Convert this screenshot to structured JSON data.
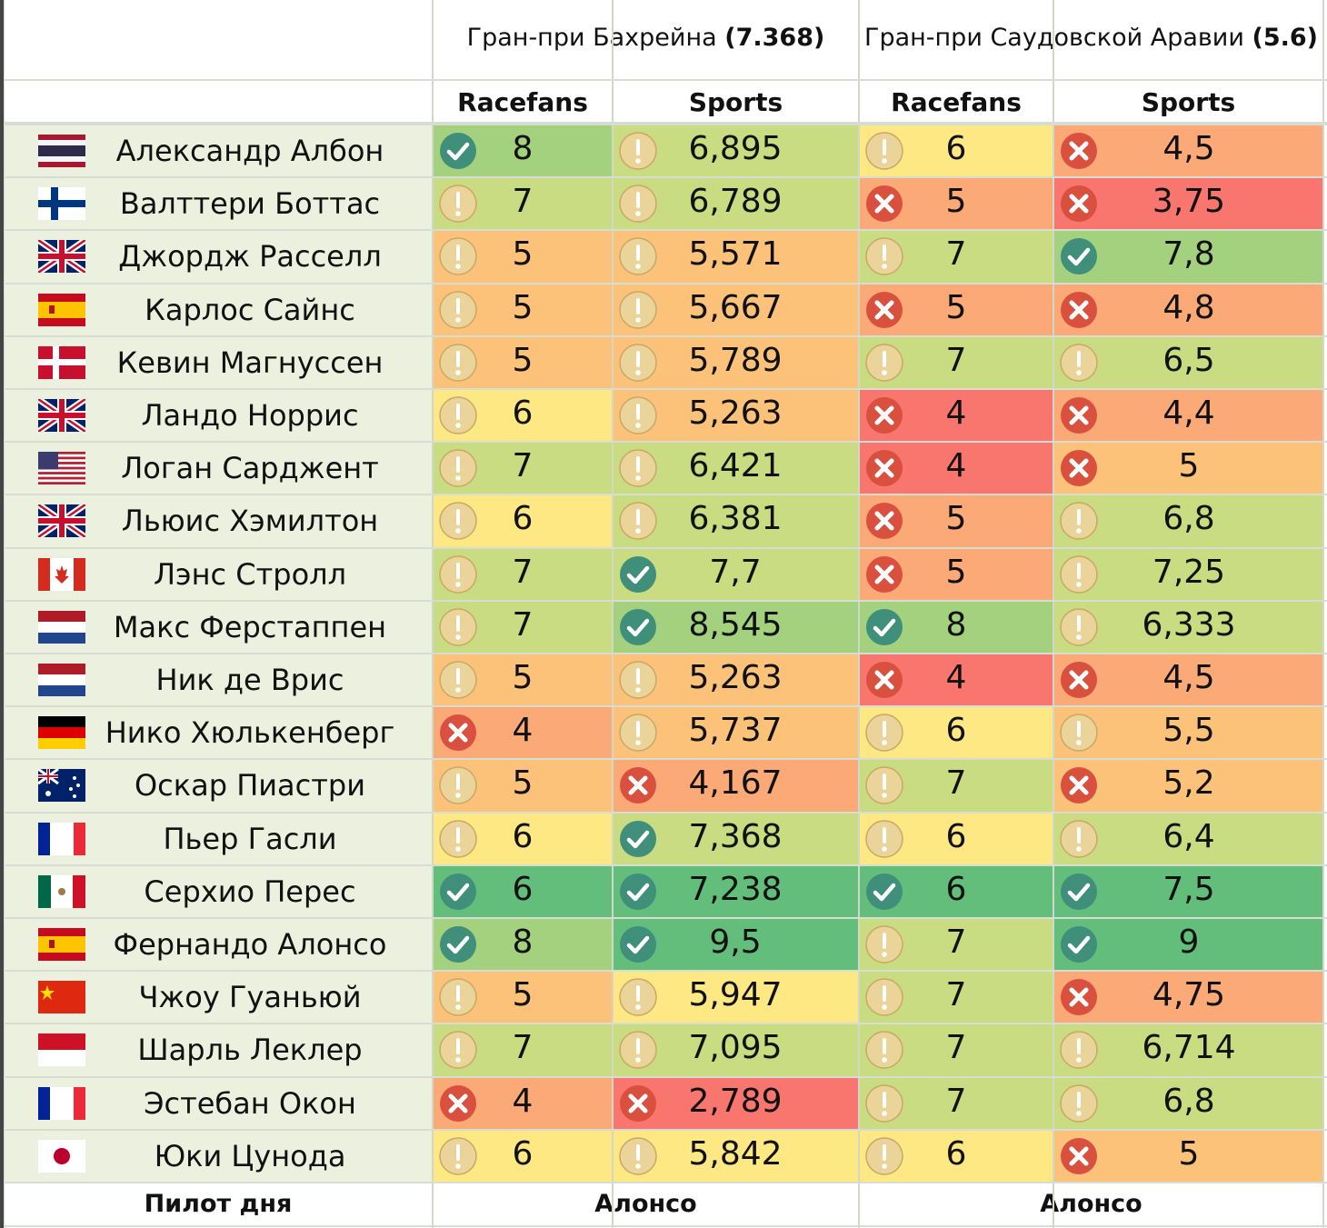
{
  "races": [
    {
      "name": "Гран-при Бахрейна",
      "score": "(7.368)"
    },
    {
      "name": "Гран-при Саудовской Аравии",
      "score": "(5.6)"
    }
  ],
  "columns": [
    "Racefans",
    "Sports",
    "Racefans",
    "Sports"
  ],
  "colors": {
    "deep_green": "#63be7b",
    "green": "#a4d17e",
    "light_green": "#c9dc81",
    "yellow": "#fde884",
    "orange": "#fcc27a",
    "light_red": "#fba977",
    "red": "#f8766d",
    "name_bg": "#ebf1de",
    "check_icon": "#3f8f7a",
    "warn_icon": "#ead49a",
    "cross_icon": "#d9503f"
  },
  "rows": [
    {
      "name": "Александр Албон",
      "flag": "thailand-flag",
      "cells": [
        {
          "v": "8",
          "icon": "check-icon",
          "c": "green"
        },
        {
          "v": "6,895",
          "icon": "warn-icon",
          "c": "light_green"
        },
        {
          "v": "6",
          "icon": "warn-icon",
          "c": "yellow"
        },
        {
          "v": "4,5",
          "icon": "cross-icon",
          "c": "light_red"
        }
      ]
    },
    {
      "name": "Валттери Боттас",
      "flag": "finland-flag",
      "cells": [
        {
          "v": "7",
          "icon": "warn-icon",
          "c": "light_green"
        },
        {
          "v": "6,789",
          "icon": "warn-icon",
          "c": "light_green"
        },
        {
          "v": "5",
          "icon": "cross-icon",
          "c": "light_red"
        },
        {
          "v": "3,75",
          "icon": "cross-icon",
          "c": "red"
        }
      ]
    },
    {
      "name": "Джордж Расселл",
      "flag": "uk-flag",
      "cells": [
        {
          "v": "5",
          "icon": "warn-icon",
          "c": "orange"
        },
        {
          "v": "5,571",
          "icon": "warn-icon",
          "c": "orange"
        },
        {
          "v": "7",
          "icon": "warn-icon",
          "c": "light_green"
        },
        {
          "v": "7,8",
          "icon": "check-icon",
          "c": "green"
        }
      ]
    },
    {
      "name": "Карлос Сайнс",
      "flag": "spain-flag",
      "cells": [
        {
          "v": "5",
          "icon": "warn-icon",
          "c": "orange"
        },
        {
          "v": "5,667",
          "icon": "warn-icon",
          "c": "orange"
        },
        {
          "v": "5",
          "icon": "cross-icon",
          "c": "light_red"
        },
        {
          "v": "4,8",
          "icon": "cross-icon",
          "c": "light_red"
        }
      ]
    },
    {
      "name": "Кевин Магнуссен",
      "flag": "denmark-flag",
      "cells": [
        {
          "v": "5",
          "icon": "warn-icon",
          "c": "orange"
        },
        {
          "v": "5,789",
          "icon": "warn-icon",
          "c": "orange"
        },
        {
          "v": "7",
          "icon": "warn-icon",
          "c": "light_green"
        },
        {
          "v": "6,5",
          "icon": "warn-icon",
          "c": "light_green"
        }
      ]
    },
    {
      "name": "Ландо Норрис",
      "flag": "uk-flag",
      "cells": [
        {
          "v": "6",
          "icon": "warn-icon",
          "c": "yellow"
        },
        {
          "v": "5,263",
          "icon": "warn-icon",
          "c": "orange"
        },
        {
          "v": "4",
          "icon": "cross-icon",
          "c": "red"
        },
        {
          "v": "4,4",
          "icon": "cross-icon",
          "c": "light_red"
        }
      ]
    },
    {
      "name": "Логан Сарджент",
      "flag": "usa-flag",
      "cells": [
        {
          "v": "7",
          "icon": "warn-icon",
          "c": "light_green"
        },
        {
          "v": "6,421",
          "icon": "warn-icon",
          "c": "light_green"
        },
        {
          "v": "4",
          "icon": "cross-icon",
          "c": "red"
        },
        {
          "v": "5",
          "icon": "cross-icon",
          "c": "orange"
        }
      ]
    },
    {
      "name": "Льюис Хэмилтон",
      "flag": "uk-flag",
      "cells": [
        {
          "v": "6",
          "icon": "warn-icon",
          "c": "yellow"
        },
        {
          "v": "6,381",
          "icon": "warn-icon",
          "c": "light_green"
        },
        {
          "v": "5",
          "icon": "cross-icon",
          "c": "light_red"
        },
        {
          "v": "6,8",
          "icon": "warn-icon",
          "c": "light_green"
        }
      ]
    },
    {
      "name": "Лэнс Стролл",
      "flag": "canada-flag",
      "cells": [
        {
          "v": "7",
          "icon": "warn-icon",
          "c": "light_green"
        },
        {
          "v": "7,7",
          "icon": "check-icon",
          "c": "light_green"
        },
        {
          "v": "5",
          "icon": "cross-icon",
          "c": "light_red"
        },
        {
          "v": "7,25",
          "icon": "warn-icon",
          "c": "light_green"
        }
      ]
    },
    {
      "name": "Макс Ферстаппен",
      "flag": "netherlands-flag",
      "cells": [
        {
          "v": "7",
          "icon": "warn-icon",
          "c": "light_green"
        },
        {
          "v": "8,545",
          "icon": "check-icon",
          "c": "green"
        },
        {
          "v": "8",
          "icon": "check-icon",
          "c": "green"
        },
        {
          "v": "6,333",
          "icon": "warn-icon",
          "c": "light_green"
        }
      ]
    },
    {
      "name": "Ник де Врис",
      "flag": "netherlands-flag",
      "cells": [
        {
          "v": "5",
          "icon": "warn-icon",
          "c": "orange"
        },
        {
          "v": "5,263",
          "icon": "warn-icon",
          "c": "orange"
        },
        {
          "v": "4",
          "icon": "cross-icon",
          "c": "red"
        },
        {
          "v": "4,5",
          "icon": "cross-icon",
          "c": "light_red"
        }
      ]
    },
    {
      "name": "Нико Хюлькенберг",
      "flag": "germany-flag",
      "cells": [
        {
          "v": "4",
          "icon": "cross-icon",
          "c": "light_red"
        },
        {
          "v": "5,737",
          "icon": "warn-icon",
          "c": "orange"
        },
        {
          "v": "6",
          "icon": "warn-icon",
          "c": "yellow"
        },
        {
          "v": "5,5",
          "icon": "warn-icon",
          "c": "orange"
        }
      ]
    },
    {
      "name": "Оскар Пиастри",
      "flag": "australia-flag",
      "cells": [
        {
          "v": "5",
          "icon": "warn-icon",
          "c": "orange"
        },
        {
          "v": "4,167",
          "icon": "cross-icon",
          "c": "light_red"
        },
        {
          "v": "7",
          "icon": "warn-icon",
          "c": "light_green"
        },
        {
          "v": "5,2",
          "icon": "cross-icon",
          "c": "orange"
        }
      ]
    },
    {
      "name": "Пьер Гасли",
      "flag": "france-flag",
      "cells": [
        {
          "v": "6",
          "icon": "warn-icon",
          "c": "yellow"
        },
        {
          "v": "7,368",
          "icon": "check-icon",
          "c": "light_green"
        },
        {
          "v": "6",
          "icon": "warn-icon",
          "c": "yellow"
        },
        {
          "v": "6,4",
          "icon": "warn-icon",
          "c": "light_green"
        }
      ]
    },
    {
      "name": "Серхио Перес",
      "flag": "mexico-flag",
      "cells": [
        {
          "v": "6",
          "icon": "check-icon",
          "c": "deep_green"
        },
        {
          "v": "7,238",
          "icon": "check-icon",
          "c": "deep_green"
        },
        {
          "v": "6",
          "icon": "check-icon",
          "c": "deep_green"
        },
        {
          "v": "7,5",
          "icon": "check-icon",
          "c": "deep_green"
        }
      ]
    },
    {
      "name": "Фернандо Алонсо",
      "flag": "spain-flag",
      "cells": [
        {
          "v": "8",
          "icon": "check-icon",
          "c": "green"
        },
        {
          "v": "9,5",
          "icon": "check-icon",
          "c": "deep_green"
        },
        {
          "v": "7",
          "icon": "warn-icon",
          "c": "light_green"
        },
        {
          "v": "9",
          "icon": "check-icon",
          "c": "deep_green"
        }
      ]
    },
    {
      "name": "Чжоу Гуаньюй",
      "flag": "china-flag",
      "cells": [
        {
          "v": "5",
          "icon": "warn-icon",
          "c": "orange"
        },
        {
          "v": "5,947",
          "icon": "warn-icon",
          "c": "yellow"
        },
        {
          "v": "7",
          "icon": "warn-icon",
          "c": "light_green"
        },
        {
          "v": "4,75",
          "icon": "cross-icon",
          "c": "light_red"
        }
      ]
    },
    {
      "name": "Шарль Леклер",
      "flag": "monaco-flag",
      "cells": [
        {
          "v": "7",
          "icon": "warn-icon",
          "c": "light_green"
        },
        {
          "v": "7,095",
          "icon": "warn-icon",
          "c": "light_green"
        },
        {
          "v": "7",
          "icon": "warn-icon",
          "c": "light_green"
        },
        {
          "v": "6,714",
          "icon": "warn-icon",
          "c": "light_green"
        }
      ]
    },
    {
      "name": "Эстебан Окон",
      "flag": "france-flag",
      "cells": [
        {
          "v": "4",
          "icon": "cross-icon",
          "c": "light_red"
        },
        {
          "v": "2,789",
          "icon": "cross-icon",
          "c": "red"
        },
        {
          "v": "7",
          "icon": "warn-icon",
          "c": "light_green"
        },
        {
          "v": "6,8",
          "icon": "warn-icon",
          "c": "light_green"
        }
      ]
    },
    {
      "name": "Юки Цунода",
      "flag": "japan-flag",
      "cells": [
        {
          "v": "6",
          "icon": "warn-icon",
          "c": "yellow"
        },
        {
          "v": "5,842",
          "icon": "warn-icon",
          "c": "yellow"
        },
        {
          "v": "6",
          "icon": "warn-icon",
          "c": "yellow"
        },
        {
          "v": "5",
          "icon": "cross-icon",
          "c": "orange"
        }
      ]
    }
  ],
  "footer": {
    "label": "Пилот дня",
    "values": [
      "Алонсо",
      "Алонсо"
    ]
  }
}
